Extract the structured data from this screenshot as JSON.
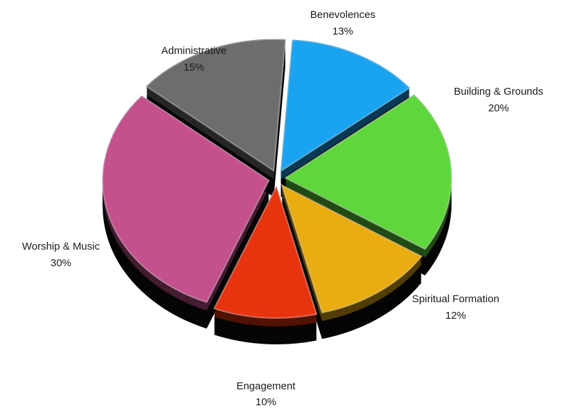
{
  "chart_data": {
    "type": "pie",
    "title": "",
    "slices": [
      {
        "label": "Benevolences",
        "value": 13,
        "value_label": "13%",
        "color": "#1aa3f0"
      },
      {
        "label": "Building & Grounds",
        "value": 20,
        "value_label": "20%",
        "color": "#5fd63c"
      },
      {
        "label": "Spiritual Formation",
        "value": 12,
        "value_label": "12%",
        "color": "#e9ad12"
      },
      {
        "label": "Engagement",
        "value": 10,
        "value_label": "10%",
        "color": "#e8330f"
      },
      {
        "label": "Worship & Music",
        "value": 30,
        "value_label": "30%",
        "color": "#c4508c"
      },
      {
        "label": "Administrative",
        "value": 15,
        "value_label": "15%",
        "color": "#6d6d6d"
      }
    ],
    "style": "3d-exploded-pie",
    "legend": "none"
  }
}
